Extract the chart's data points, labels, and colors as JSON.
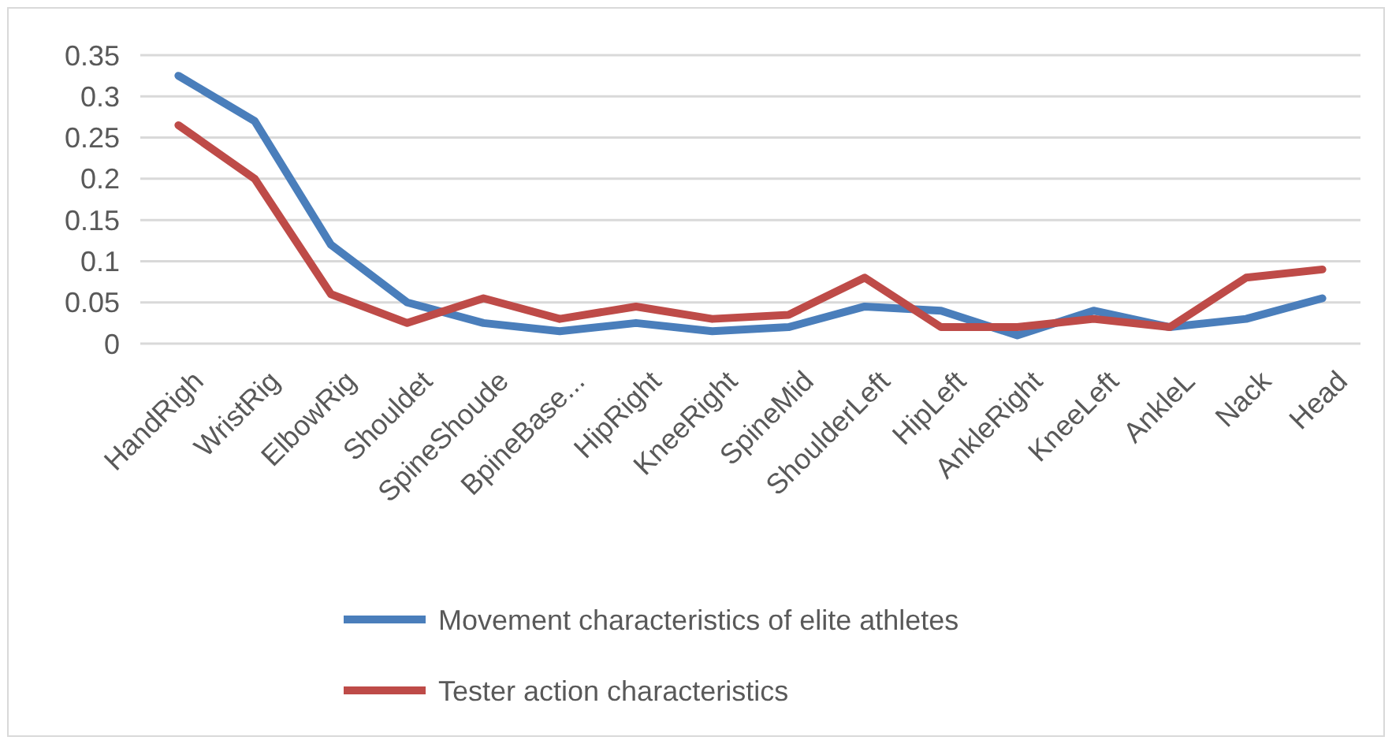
{
  "chart_data": {
    "type": "line",
    "categories": [
      "HandRigh",
      "WristRig",
      "ElbowRig",
      "Shouldet",
      "SpineShoude",
      "BpineBase...",
      "HipRight",
      "KneeRight",
      "SpineMid",
      "ShoulderLeft",
      "HipLeft",
      "AnkleRight",
      "KneeLeft",
      "AnkleL",
      "Nack",
      "Head"
    ],
    "series": [
      {
        "name": "Movement characteristics of elite athletes",
        "color": "#4a7ebb",
        "values": [
          0.325,
          0.27,
          0.12,
          0.05,
          0.025,
          0.015,
          0.025,
          0.015,
          0.02,
          0.045,
          0.04,
          0.01,
          0.04,
          0.02,
          0.03,
          0.055
        ]
      },
      {
        "name": "Tester action characteristics",
        "color": "#be4b48",
        "values": [
          0.265,
          0.2,
          0.06,
          0.025,
          0.055,
          0.03,
          0.045,
          0.03,
          0.035,
          0.08,
          0.02,
          0.02,
          0.03,
          0.02,
          0.08,
          0.09
        ]
      }
    ],
    "ylim": [
      0,
      0.35
    ],
    "yticks": [
      0,
      0.05,
      0.1,
      0.15,
      0.2,
      0.25,
      0.3,
      0.35
    ],
    "grid": "y",
    "legend": "bottom",
    "marker": "none",
    "line_style": "solid"
  }
}
